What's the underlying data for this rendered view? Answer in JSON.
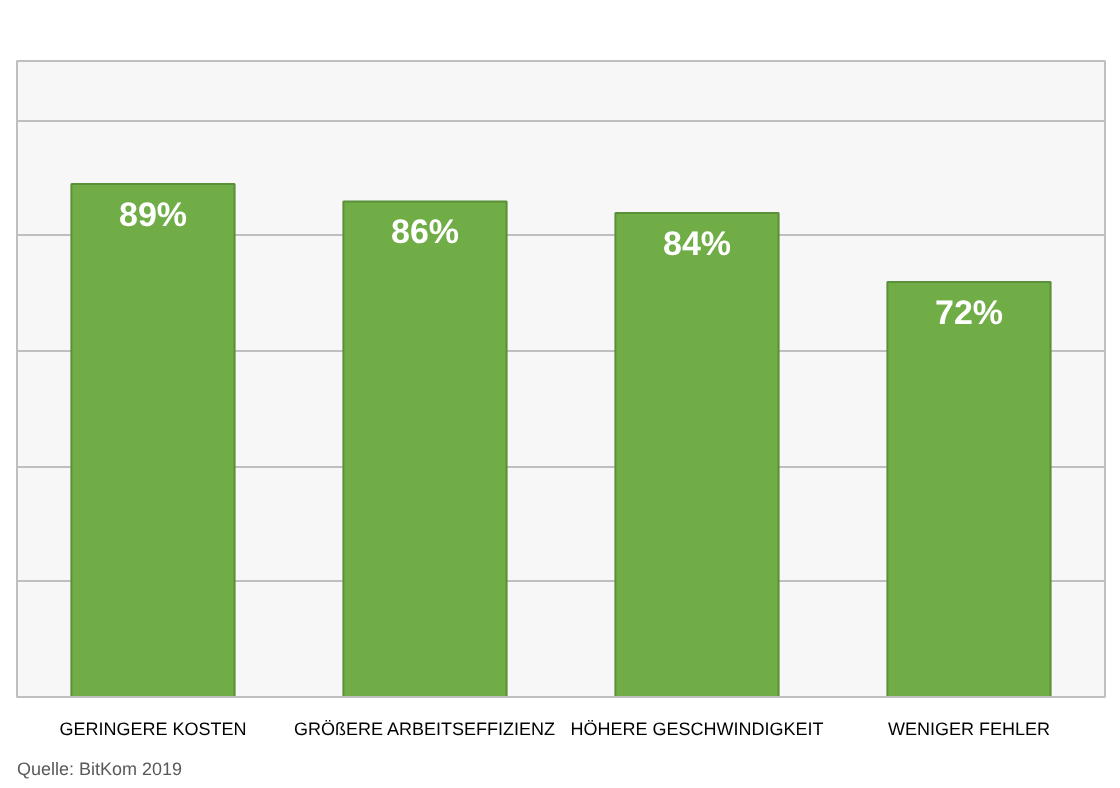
{
  "chart_data": {
    "type": "bar",
    "categories": [
      "GERINGERE KOSTEN",
      "GRÖßERE ARBEITSEFFIZIENZ",
      "HÖHERE GESCHWINDIGKEIT",
      "WENIGER FEHLER"
    ],
    "values": [
      89,
      86,
      84,
      72
    ],
    "color": "#70ad47",
    "value_labels": [
      "89%",
      "86%",
      "84%",
      "72%"
    ],
    "grid": "y",
    "tick_labels": "x",
    "annotations": [
      "Quelle: BitKom 2019"
    ]
  }
}
